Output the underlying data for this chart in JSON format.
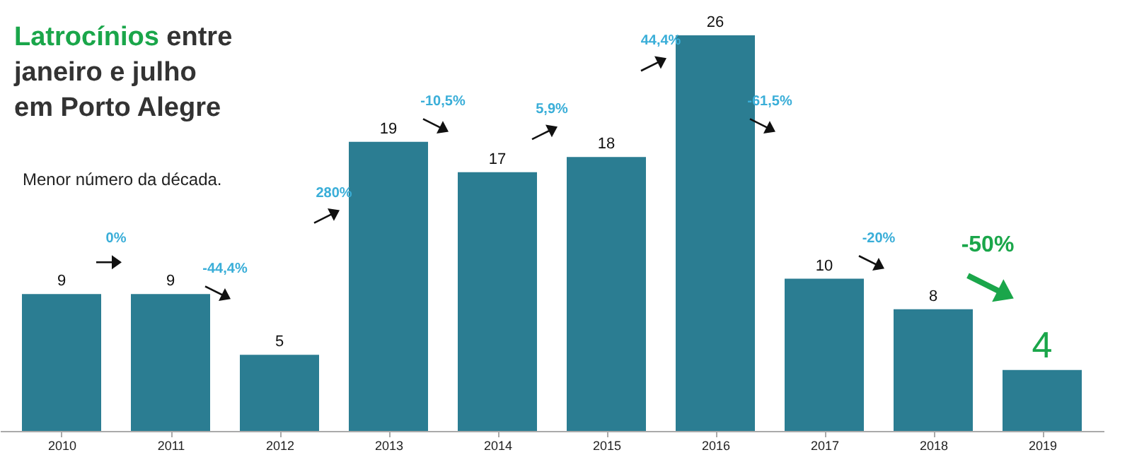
{
  "chart_data": {
    "type": "bar",
    "title": "Latrocínios entre janeiro e julho em Porto Alegre",
    "subtitle": "Menor número da década.",
    "categories": [
      "2010",
      "2011",
      "2012",
      "2013",
      "2014",
      "2015",
      "2016",
      "2017",
      "2018",
      "2019"
    ],
    "values": [
      9,
      9,
      5,
      19,
      17,
      18,
      26,
      10,
      8,
      4
    ],
    "color": "#2b7d92",
    "data_labels": true,
    "annotations": [
      "0%",
      "-44,4%",
      "280%",
      "-10,5%",
      "5,9%",
      "44,4%",
      "-61,5%",
      "-20%",
      "-50%"
    ]
  }
}
